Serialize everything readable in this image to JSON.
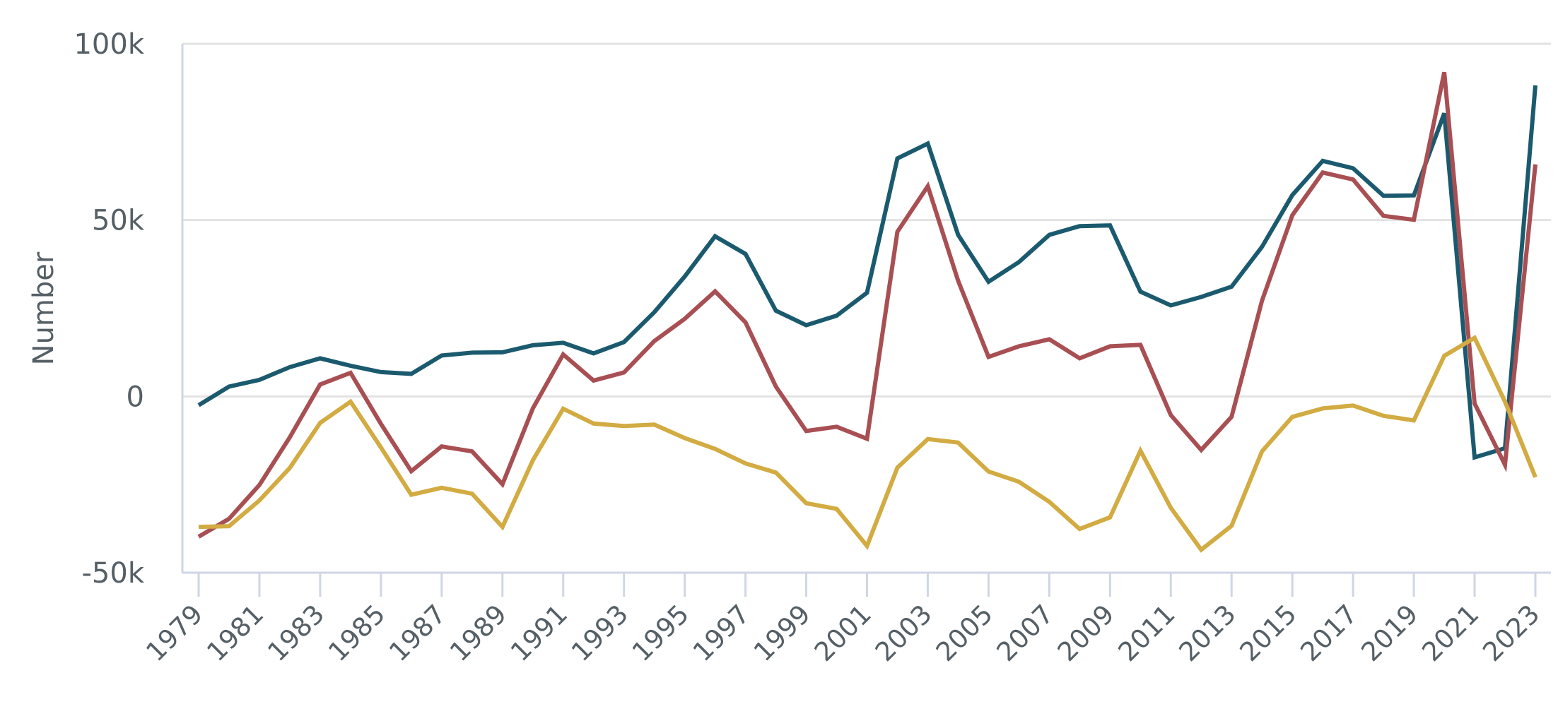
{
  "chart_data": {
    "type": "line",
    "title": "",
    "xlabel": "",
    "ylabel": "Number",
    "x": [
      1979,
      1980,
      1981,
      1982,
      1983,
      1984,
      1985,
      1986,
      1987,
      1988,
      1989,
      1990,
      1991,
      1992,
      1993,
      1994,
      1995,
      1996,
      1997,
      1998,
      1999,
      2000,
      2001,
      2002,
      2003,
      2004,
      2005,
      2006,
      2007,
      2008,
      2009,
      2010,
      2011,
      2012,
      2013,
      2014,
      2015,
      2016,
      2017,
      2018,
      2019,
      2020,
      2021,
      2022,
      2023
    ],
    "x_ticks": [
      "1979",
      "1981",
      "1983",
      "1985",
      "1987",
      "1989",
      "1991",
      "1993",
      "1995",
      "1997",
      "1999",
      "2001",
      "2003",
      "2005",
      "2007",
      "2009",
      "2011",
      "2013",
      "2015",
      "2017",
      "2019",
      "2021",
      "2023"
    ],
    "y_ticks": [
      {
        "value": 100000,
        "label": "100k"
      },
      {
        "value": 50000,
        "label": "50k"
      },
      {
        "value": 0,
        "label": "0"
      },
      {
        "value": -50000,
        "label": "-50k"
      }
    ],
    "ylim": [
      -50000,
      100000
    ],
    "grid": "horizontal",
    "legend": "none",
    "series": [
      {
        "color": "#1b5a6e",
        "values": [
          -2500,
          2800,
          4700,
          8300,
          10800,
          8700,
          6900,
          6400,
          11600,
          12400,
          12500,
          14500,
          15200,
          12200,
          15400,
          23900,
          34000,
          45400,
          40400,
          24300,
          20200,
          22900,
          29400,
          67500,
          71700,
          45800,
          32500,
          38100,
          45800,
          48300,
          48500,
          29700,
          25800,
          28200,
          31100,
          42400,
          57100,
          66800,
          64700,
          56900,
          57000,
          80300,
          -17300,
          -14700,
          88200
        ]
      },
      {
        "color": "#a84f53",
        "values": [
          -39800,
          -34700,
          -25100,
          -11600,
          3400,
          6700,
          -7800,
          -21200,
          -14200,
          -15600,
          -24900,
          -3400,
          11900,
          4500,
          6800,
          15700,
          22000,
          29800,
          21000,
          2800,
          -9800,
          -8600,
          -12000,
          46700,
          59600,
          32800,
          11200,
          14200,
          16200,
          10800,
          14200,
          14600,
          -5300,
          -15200,
          -5800,
          27100,
          51400,
          63500,
          61500,
          51200,
          50100,
          91900,
          -2000,
          -19400,
          65800
        ]
      },
      {
        "color": "#d2ab42",
        "values": [
          -37000,
          -36800,
          -29500,
          -20300,
          -7500,
          -1500,
          -14500,
          -27900,
          -25900,
          -27600,
          -37000,
          -18100,
          -3500,
          -7700,
          -8400,
          -8000,
          -11800,
          -14900,
          -19000,
          -21600,
          -30300,
          -31900,
          -42400,
          -20200,
          -12100,
          -13100,
          -21300,
          -24200,
          -29900,
          -37600,
          -34300,
          -15400,
          -31600,
          -43500,
          -36700,
          -15600,
          -5800,
          -3400,
          -2600,
          -5500,
          -6800,
          11500,
          16600,
          -1500,
          -22900
        ]
      }
    ]
  }
}
